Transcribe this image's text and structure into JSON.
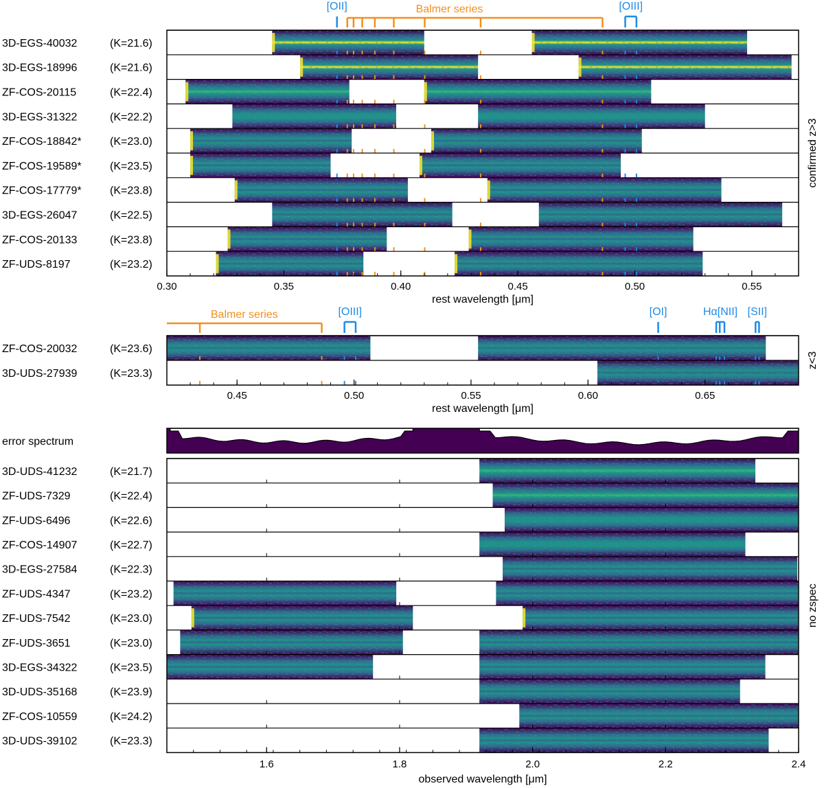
{
  "panels": [
    {
      "id": "confirmed",
      "side_label": "confirmed z>3",
      "axis_title": "rest wavelength [μm]",
      "xmin": 0.3,
      "xmax": 0.57,
      "ticks": [
        {
          "value": 0.3,
          "label": "0.30"
        },
        {
          "value": 0.35,
          "label": "0.35"
        },
        {
          "value": 0.4,
          "label": "0.40"
        },
        {
          "value": 0.45,
          "label": "0.45"
        },
        {
          "value": 0.5,
          "label": "0.50"
        },
        {
          "value": 0.55,
          "label": "0.55"
        }
      ],
      "balmer": {
        "label": "Balmer series",
        "lines": [
          0.3771,
          0.3798,
          0.3835,
          0.3889,
          0.397,
          0.4102,
          0.4341,
          0.4862
        ]
      },
      "oxygen": [
        {
          "label": "[OII]",
          "lines": [
            0.3727
          ]
        },
        {
          "label": "[OIII]",
          "lines": [
            0.4959,
            0.5007
          ]
        }
      ],
      "rows": [
        {
          "name": "3D-EGS-40032",
          "k": "(K=21.6)",
          "segments": [
            [
              0.345,
              0.41
            ],
            [
              0.456,
              0.548
            ]
          ],
          "brightness": 0.9,
          "edge_glow": true
        },
        {
          "name": "3D-EGS-18996",
          "k": "(K=21.6)",
          "segments": [
            [
              0.357,
              0.433
            ],
            [
              0.476,
              0.567
            ]
          ],
          "brightness": 0.9,
          "edge_glow": true
        },
        {
          "name": "ZF-COS-20115",
          "k": "(K=22.4)",
          "segments": [
            [
              0.308,
              0.378
            ],
            [
              0.41,
              0.507
            ]
          ],
          "brightness": 0.55,
          "edge_glow": true
        },
        {
          "name": "3D-EGS-31322",
          "k": "(K=22.2)",
          "segments": [
            [
              0.328,
              0.398
            ],
            [
              0.433,
              0.53
            ]
          ],
          "brightness": 0.45,
          "edge_glow": false
        },
        {
          "name": "ZF-COS-18842*",
          "k": "(K=23.0)",
          "segments": [
            [
              0.31,
              0.379
            ],
            [
              0.413,
              0.503
            ]
          ],
          "brightness": 0.3,
          "edge_glow": true
        },
        {
          "name": "ZF-COS-19589*",
          "k": "(K=23.5)",
          "segments": [
            [
              0.31,
              0.37
            ],
            [
              0.408,
              0.494
            ]
          ],
          "brightness": 0.25,
          "edge_glow": true
        },
        {
          "name": "ZF-COS-17779*",
          "k": "(K=23.8)",
          "segments": [
            [
              0.329,
              0.403
            ],
            [
              0.437,
              0.537
            ]
          ],
          "brightness": 0.25,
          "edge_glow": true
        },
        {
          "name": "3D-EGS-26047",
          "k": "(K=22.5)",
          "segments": [
            [
              0.345,
              0.422
            ],
            [
              0.459,
              0.563
            ]
          ],
          "brightness": 0.3,
          "edge_glow": false
        },
        {
          "name": "ZF-COS-20133",
          "k": "(K=23.8)",
          "segments": [
            [
              0.326,
              0.394
            ],
            [
              0.429,
              0.525
            ]
          ],
          "brightness": 0.2,
          "edge_glow": true
        },
        {
          "name": "ZF-UDS-8197",
          "k": "(K=23.2)",
          "segments": [
            [
              0.321,
              0.384
            ],
            [
              0.423,
              0.529
            ]
          ],
          "brightness": 0.2,
          "edge_glow": true
        }
      ]
    },
    {
      "id": "lowz",
      "side_label": "z<3",
      "axis_title": "rest wavelength [μm]",
      "xmin": 0.42,
      "xmax": 0.69,
      "ticks": [
        {
          "value": 0.45,
          "label": "0.45"
        },
        {
          "value": 0.5,
          "label": "0.50"
        },
        {
          "value": 0.55,
          "label": "0.55"
        },
        {
          "value": 0.6,
          "label": "0.60"
        },
        {
          "value": 0.65,
          "label": "0.65"
        }
      ],
      "balmer": {
        "label": "Balmer series",
        "lines": [
          0.4341,
          0.4862
        ]
      },
      "oxygen": [
        {
          "label": "[OIII]",
          "lines": [
            0.4959,
            0.5007
          ]
        },
        {
          "label": "[OI]",
          "lines": [
            0.63
          ]
        },
        {
          "label": "Hα[NII]",
          "lines": [
            0.6548,
            0.6563,
            0.6583
          ]
        },
        {
          "label": "[SII]",
          "lines": [
            0.6716,
            0.6731
          ]
        }
      ],
      "rows": [
        {
          "name": "ZF-COS-20032",
          "k": "(K=23.6)",
          "segments": [
            [
              0.42,
              0.507
            ],
            [
              0.553,
              0.676
            ]
          ],
          "brightness": 0.25,
          "edge_glow": false
        },
        {
          "name": "3D-UDS-27939",
          "k": "(K=23.3)",
          "segments": [
            [
              0.604,
              0.69
            ]
          ],
          "brightness": 0.25,
          "edge_glow": false
        }
      ]
    },
    {
      "id": "nozspec",
      "side_label": "no zspec",
      "axis_title": "observed wavelength [μm]",
      "error_label": "error spectrum",
      "xmin": 1.45,
      "xmax": 2.4,
      "ticks": [
        {
          "value": 1.6,
          "label": "1.6"
        },
        {
          "value": 1.8,
          "label": "1.8"
        },
        {
          "value": 2.0,
          "label": "2.0"
        },
        {
          "value": 2.2,
          "label": "2.2"
        },
        {
          "value": 2.4,
          "label": "2.4"
        }
      ],
      "rows": [
        {
          "name": "3D-UDS-41232",
          "k": "(K=21.7)",
          "segments": [
            [
              1.92,
              2.335
            ]
          ],
          "brightness": 0.7,
          "edge_glow": false
        },
        {
          "name": "ZF-UDS-7329",
          "k": "(K=22.4)",
          "segments": [
            [
              1.94,
              2.4
            ]
          ],
          "brightness": 0.55,
          "edge_glow": false
        },
        {
          "name": "ZF-UDS-6496",
          "k": "(K=22.6)",
          "segments": [
            [
              1.958,
              2.4
            ]
          ],
          "brightness": 0.4,
          "edge_glow": false
        },
        {
          "name": "ZF-COS-14907",
          "k": "(K=22.7)",
          "segments": [
            [
              1.92,
              2.32
            ]
          ],
          "brightness": 0.45,
          "edge_glow": false
        },
        {
          "name": "3D-EGS-27584",
          "k": "(K=22.3)",
          "segments": [
            [
              1.955,
              2.398
            ]
          ],
          "brightness": 0.35,
          "edge_glow": false
        },
        {
          "name": "ZF-UDS-4347",
          "k": "(K=23.2)",
          "segments": [
            [
              1.46,
              1.795
            ],
            [
              1.945,
              2.4
            ]
          ],
          "brightness": 0.3,
          "edge_glow": false
        },
        {
          "name": "ZF-UDS-7542",
          "k": "(K=23.0)",
          "segments": [
            [
              1.487,
              1.82
            ],
            [
              1.985,
              2.4
            ]
          ],
          "brightness": 0.3,
          "edge_glow": true
        },
        {
          "name": "ZF-UDS-3651",
          "k": "(K=23.0)",
          "segments": [
            [
              1.47,
              1.805
            ],
            [
              1.92,
              2.4
            ]
          ],
          "brightness": 0.25,
          "edge_glow": false
        },
        {
          "name": "3D-EGS-34322",
          "k": "(K=23.5)",
          "segments": [
            [
              1.45,
              1.76
            ],
            [
              1.92,
              2.35
            ]
          ],
          "brightness": 0.25,
          "edge_glow": false
        },
        {
          "name": "3D-UDS-35168",
          "k": "(K=23.9)",
          "segments": [
            [
              1.92,
              2.312
            ]
          ],
          "brightness": 0.2,
          "edge_glow": false
        },
        {
          "name": "ZF-COS-10559",
          "k": "(K=24.2)",
          "segments": [
            [
              1.98,
              2.4
            ]
          ],
          "brightness": 0.2,
          "edge_glow": false
        },
        {
          "name": "3D-UDS-39102",
          "k": "(K=23.3)",
          "segments": [
            [
              1.92,
              2.355
            ]
          ],
          "brightness": 0.2,
          "edge_glow": false
        }
      ]
    }
  ],
  "colors": {
    "balmer": "#f0901e",
    "oxygen": "#1e8ae6",
    "dark": "#440154",
    "mid": "#31688e",
    "teal": "#21918c",
    "green": "#35b779",
    "yellow": "#fde725"
  }
}
